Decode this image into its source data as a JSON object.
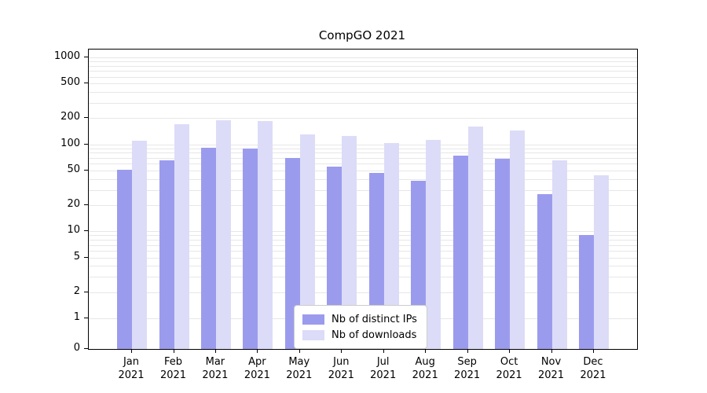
{
  "chart_data": {
    "type": "bar",
    "title": "CompGO 2021",
    "categories": [
      "Jan",
      "Feb",
      "Mar",
      "Apr",
      "May",
      "Jun",
      "Jul",
      "Aug",
      "Sep",
      "Oct",
      "Nov",
      "Dec"
    ],
    "category_year": "2021",
    "series": [
      {
        "name": "Nb of distinct IPs",
        "color": "#9b9bee",
        "values": [
          51,
          65,
          92,
          90,
          70,
          56,
          47,
          38,
          75,
          68,
          27,
          9
        ]
      },
      {
        "name": "Nb of downloads",
        "color": "#dcdcf8",
        "values": [
          110,
          170,
          190,
          185,
          130,
          125,
          103,
          112,
          160,
          145,
          65,
          44
        ]
      }
    ],
    "y_ticks": [
      0,
      1,
      2,
      5,
      10,
      20,
      50,
      100,
      200,
      500,
      1000
    ],
    "y_scale": "symlog",
    "ylim": [
      0,
      1000
    ],
    "xlabel": "",
    "ylabel": "",
    "grid": "horizontal-log-minor",
    "gridline_color": "#e7e7e7",
    "legend_position": "lower-center"
  }
}
